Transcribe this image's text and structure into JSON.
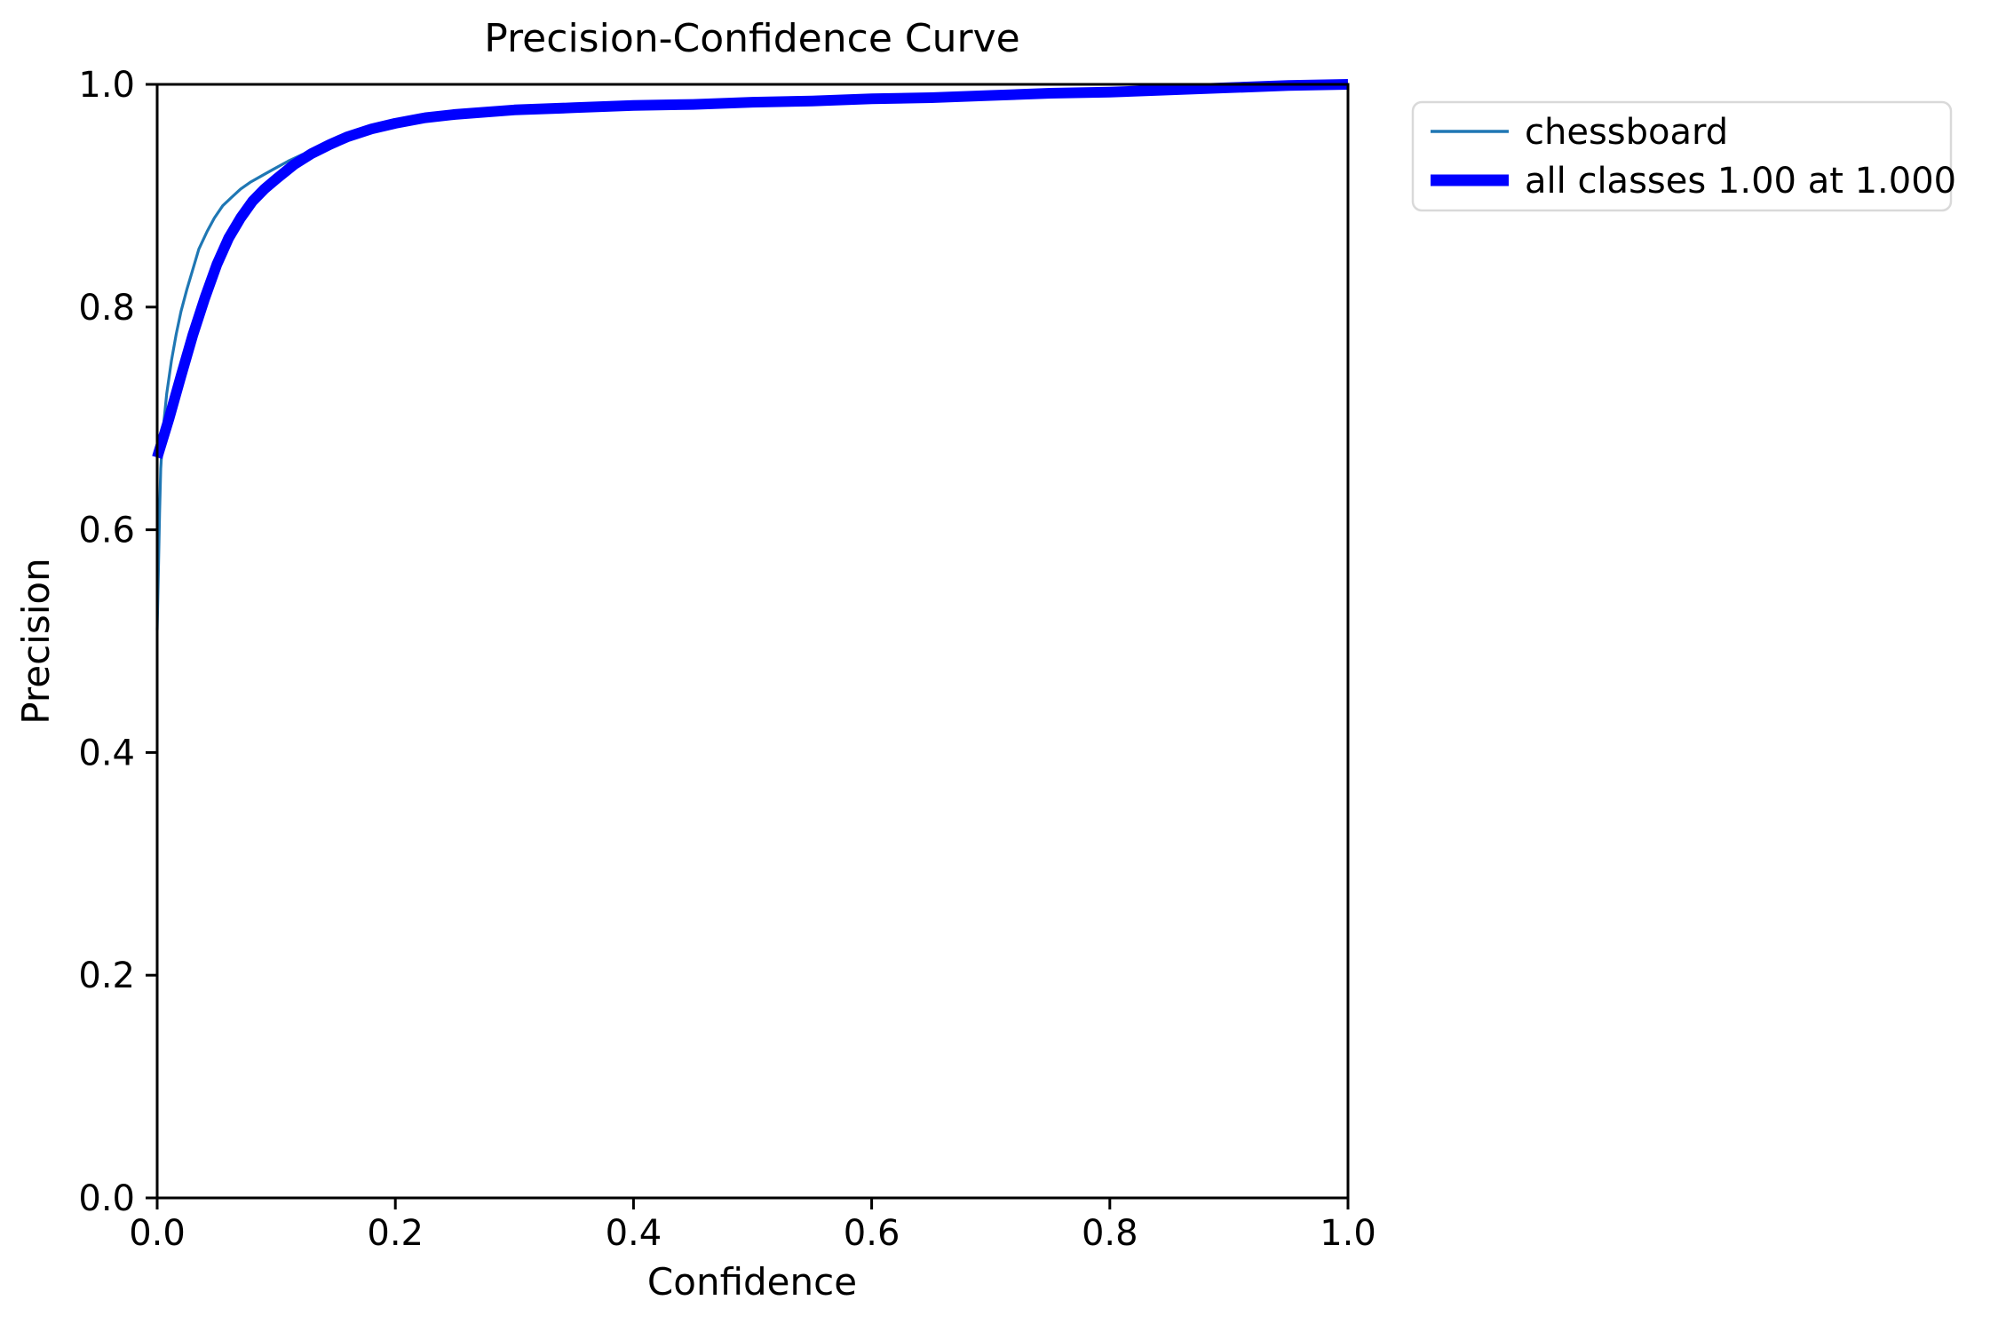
{
  "figure": {
    "title": "Precision-Confidence Curve",
    "xlabel": "Confidence",
    "ylabel": "Precision"
  },
  "legend": {
    "items": [
      {
        "label": "chessboard",
        "color": "#1f77b4",
        "line_width": 3.5
      },
      {
        "label": "all classes 1.00 at 1.000",
        "color": "#0000ff",
        "line_width": 13
      }
    ]
  },
  "chart_data": {
    "type": "line",
    "title": "Precision-Confidence Curve",
    "xlabel": "Confidence",
    "ylabel": "Precision",
    "xlim": [
      0.0,
      1.0
    ],
    "ylim": [
      0.0,
      1.0
    ],
    "x_ticks": [
      0.0,
      0.2,
      0.4,
      0.6,
      0.8,
      1.0
    ],
    "y_ticks": [
      0.0,
      0.2,
      0.4,
      0.6,
      0.8,
      1.0
    ],
    "x_tick_labels": [
      "0.0",
      "0.2",
      "0.4",
      "0.6",
      "0.8",
      "1.0"
    ],
    "y_tick_labels": [
      "0.0",
      "0.2",
      "0.4",
      "0.6",
      "0.8",
      "1.0"
    ],
    "grid": false,
    "legend_position": "outside upper right",
    "series": [
      {
        "name": "chessboard",
        "color": "#1f77b4",
        "line_width": 3.2,
        "points": [
          [
            0.0,
            0.51
          ],
          [
            0.001,
            0.56
          ],
          [
            0.002,
            0.615
          ],
          [
            0.003,
            0.655
          ],
          [
            0.005,
            0.69
          ],
          [
            0.008,
            0.722
          ],
          [
            0.012,
            0.752
          ],
          [
            0.016,
            0.776
          ],
          [
            0.02,
            0.796
          ],
          [
            0.025,
            0.816
          ],
          [
            0.03,
            0.834
          ],
          [
            0.035,
            0.852
          ],
          [
            0.042,
            0.868
          ],
          [
            0.048,
            0.88
          ],
          [
            0.055,
            0.891
          ],
          [
            0.062,
            0.898
          ],
          [
            0.07,
            0.906
          ],
          [
            0.078,
            0.912
          ],
          [
            0.088,
            0.918
          ],
          [
            0.098,
            0.924
          ],
          [
            0.11,
            0.931
          ],
          [
            0.122,
            0.937
          ],
          [
            0.135,
            0.941
          ],
          [
            0.15,
            0.948
          ],
          [
            0.165,
            0.955
          ],
          [
            0.18,
            0.96
          ],
          [
            0.2,
            0.965
          ],
          [
            0.225,
            0.97
          ],
          [
            0.25,
            0.973
          ],
          [
            0.3,
            0.977
          ],
          [
            0.35,
            0.979
          ],
          [
            0.4,
            0.981
          ],
          [
            0.45,
            0.982
          ],
          [
            0.5,
            0.984
          ],
          [
            0.55,
            0.985
          ],
          [
            0.6,
            0.987
          ],
          [
            0.65,
            0.988
          ],
          [
            0.7,
            0.99
          ],
          [
            0.75,
            0.992
          ],
          [
            0.8,
            0.993
          ],
          [
            0.85,
            0.995
          ],
          [
            0.9,
            0.997
          ],
          [
            0.95,
            0.999
          ],
          [
            1.0,
            1.0
          ]
        ]
      },
      {
        "name": "all classes 1.00 at 1.000",
        "color": "#0000ff",
        "line_width": 12,
        "points": [
          [
            0.0,
            0.665
          ],
          [
            0.01,
            0.7
          ],
          [
            0.02,
            0.738
          ],
          [
            0.03,
            0.775
          ],
          [
            0.04,
            0.808
          ],
          [
            0.05,
            0.838
          ],
          [
            0.06,
            0.862
          ],
          [
            0.07,
            0.88
          ],
          [
            0.08,
            0.895
          ],
          [
            0.09,
            0.906
          ],
          [
            0.1,
            0.915
          ],
          [
            0.115,
            0.928
          ],
          [
            0.13,
            0.938
          ],
          [
            0.145,
            0.946
          ],
          [
            0.16,
            0.953
          ],
          [
            0.18,
            0.96
          ],
          [
            0.2,
            0.965
          ],
          [
            0.225,
            0.97
          ],
          [
            0.25,
            0.973
          ],
          [
            0.3,
            0.977
          ],
          [
            0.35,
            0.979
          ],
          [
            0.4,
            0.981
          ],
          [
            0.45,
            0.982
          ],
          [
            0.5,
            0.984
          ],
          [
            0.55,
            0.985
          ],
          [
            0.6,
            0.987
          ],
          [
            0.65,
            0.988
          ],
          [
            0.7,
            0.99
          ],
          [
            0.75,
            0.992
          ],
          [
            0.8,
            0.993
          ],
          [
            0.85,
            0.995
          ],
          [
            0.9,
            0.997
          ],
          [
            0.95,
            0.999
          ],
          [
            1.0,
            1.0
          ]
        ]
      }
    ]
  }
}
